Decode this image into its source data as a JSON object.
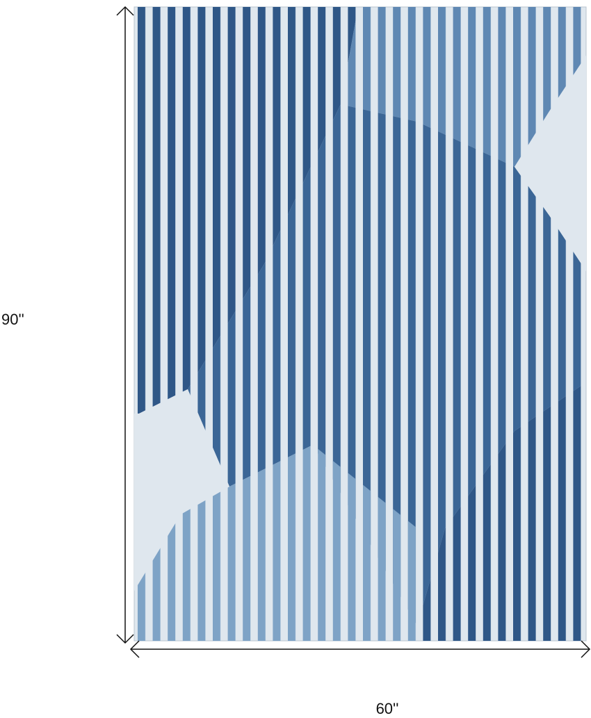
{
  "dimensions": {
    "height": "90''",
    "width": "60''"
  }
}
